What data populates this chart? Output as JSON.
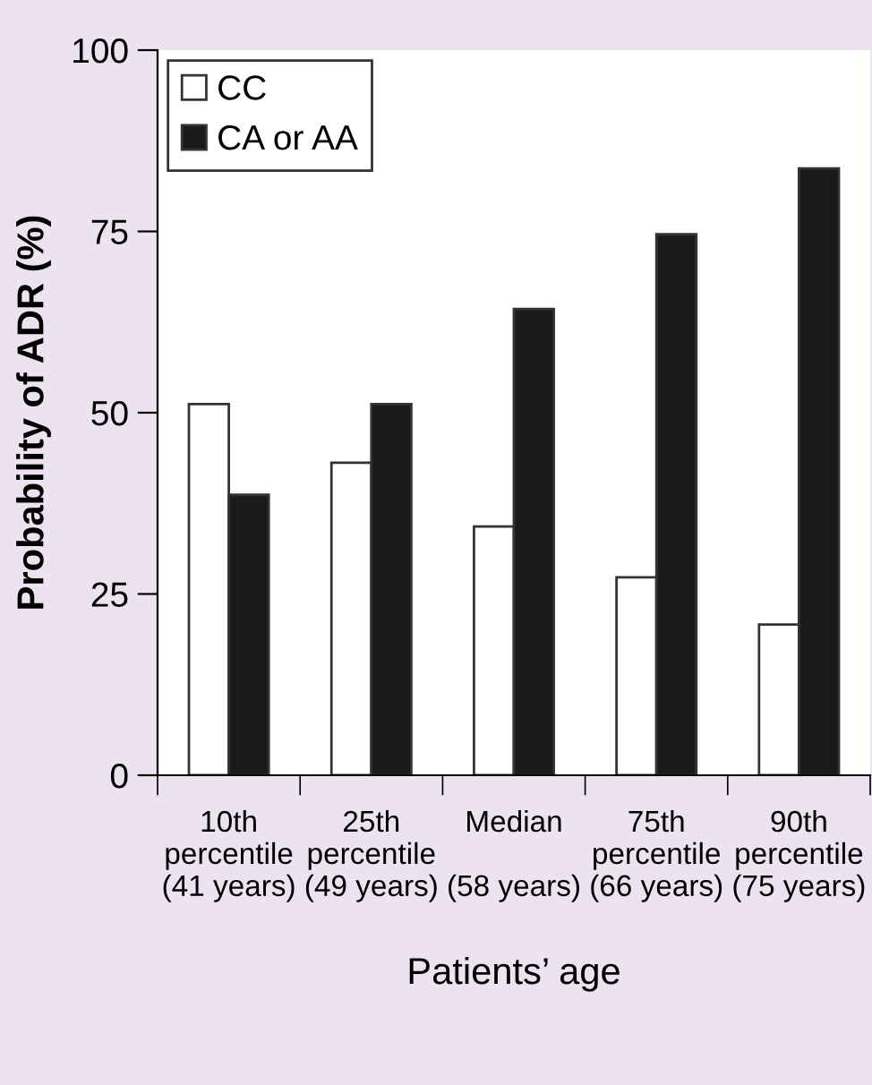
{
  "chart_data": {
    "type": "bar",
    "xlabel": "Patients’ age",
    "ylabel": "Probability of ADR (%)",
    "categories": [
      "10th\npercentile\n(41 years)",
      "25th\npercentile\n(49 years)",
      "Median\n\n(58 years)",
      "75th\npercentile\n(66 years)",
      "90th\npercentile\n(75 years)"
    ],
    "series": [
      {
        "name": "CC",
        "color": "#ffffff",
        "values": [
          51.2,
          43.1,
          34.3,
          27.3,
          20.8
        ]
      },
      {
        "name": "CA or AA",
        "color": "#1a1a1a",
        "values": [
          38.7,
          51.2,
          64.3,
          74.6,
          83.7
        ]
      }
    ],
    "ylim": [
      0,
      100
    ],
    "yticks": [
      0,
      25,
      50,
      75,
      100
    ],
    "grid": false,
    "legend": "top left"
  }
}
